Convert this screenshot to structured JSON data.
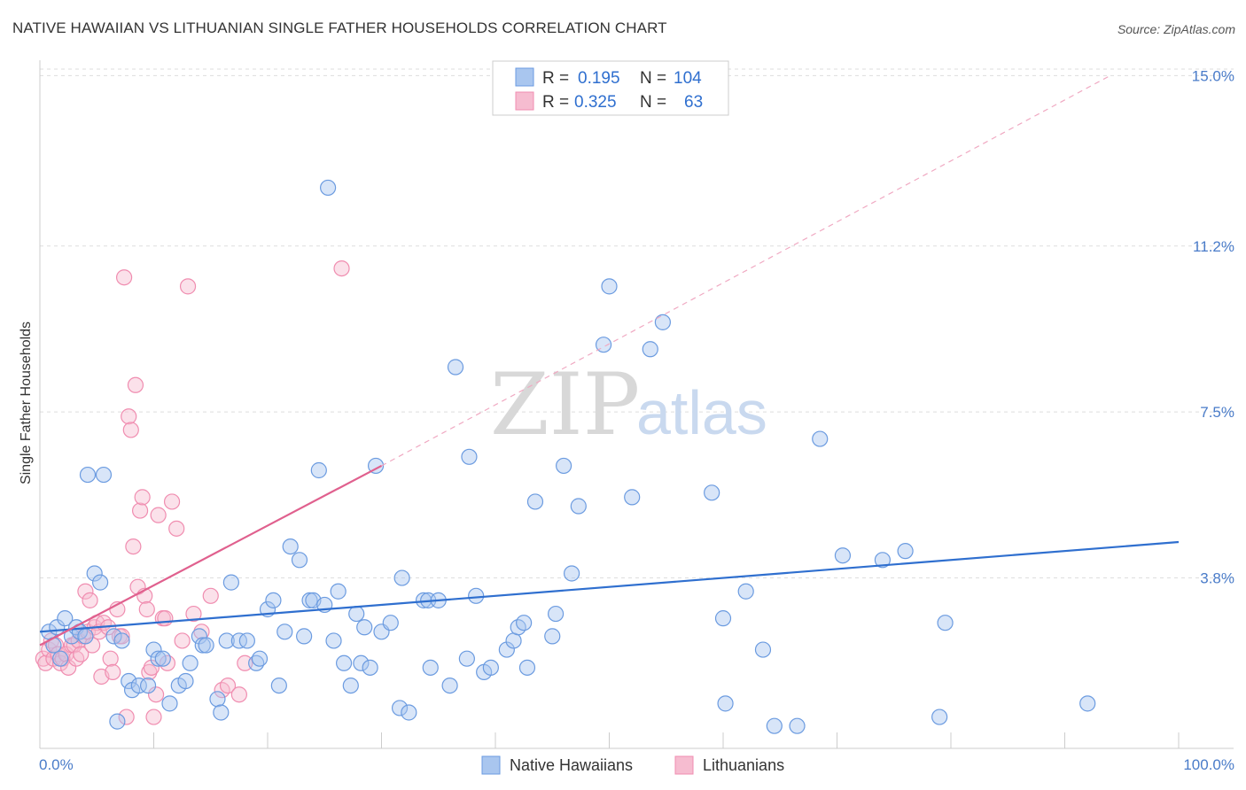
{
  "header": {
    "title": "NATIVE HAWAIIAN VS LITHUANIAN SINGLE FATHER HOUSEHOLDS CORRELATION CHART",
    "source": "Source: ZipAtlas.com"
  },
  "watermark": {
    "zip": "ZIP",
    "atlas": "atlas"
  },
  "legend": {
    "rows": [
      {
        "r_label": "R =",
        "r_value": "0.195",
        "n_label": "N =",
        "n_value": "104",
        "color": "#6b9be0"
      },
      {
        "r_label": "R =",
        "r_value": "0.325",
        "n_label": "N =",
        "n_value": "63",
        "color": "#f08db0"
      }
    ]
  },
  "colors": {
    "blue_fill": "#a9c6ef",
    "blue_stroke": "#6b9be0",
    "blue_line": "#2f6fcf",
    "pink_fill": "#f6bcd0",
    "pink_stroke": "#f08db0",
    "pink_line": "#e0608e",
    "grid": "#dddddd",
    "axis_tick": "#4a7cc9"
  },
  "chart_data": {
    "type": "scatter",
    "title": "NATIVE HAWAIIAN VS LITHUANIAN SINGLE FATHER HOUSEHOLDS CORRELATION CHART",
    "xlabel": "",
    "ylabel": "Single Father Households",
    "xlim": [
      0,
      100
    ],
    "ylim": [
      0,
      15.5
    ],
    "x_tick_labels": [
      "0.0%",
      "100.0%"
    ],
    "y_ticks": [
      3.8,
      7.5,
      11.2,
      15.0
    ],
    "y_tick_labels": [
      "3.8%",
      "7.5%",
      "11.2%",
      "15.0%"
    ],
    "grid": true,
    "series": [
      {
        "name": "Native Hawaiians",
        "color": "#6b9be0",
        "trend": {
          "x": [
            0,
            100
          ],
          "y": [
            2.6,
            4.6
          ],
          "style": "solid"
        },
        "points": [
          [
            0.8,
            2.6
          ],
          [
            1.2,
            2.3
          ],
          [
            1.5,
            2.7
          ],
          [
            1.8,
            2.0
          ],
          [
            2.2,
            2.9
          ],
          [
            2.8,
            2.5
          ],
          [
            3.2,
            2.7
          ],
          [
            3.5,
            2.6
          ],
          [
            4.0,
            2.5
          ],
          [
            4.2,
            6.1
          ],
          [
            4.8,
            3.9
          ],
          [
            5.3,
            3.7
          ],
          [
            5.6,
            6.1
          ],
          [
            6.5,
            2.5
          ],
          [
            6.8,
            0.6
          ],
          [
            7.2,
            2.4
          ],
          [
            7.8,
            1.5
          ],
          [
            8.1,
            1.3
          ],
          [
            8.7,
            1.4
          ],
          [
            9.5,
            1.4
          ],
          [
            10.0,
            2.2
          ],
          [
            10.4,
            2.0
          ],
          [
            10.8,
            2.0
          ],
          [
            11.4,
            1.0
          ],
          [
            12.2,
            1.4
          ],
          [
            12.8,
            1.5
          ],
          [
            13.2,
            1.9
          ],
          [
            14.0,
            2.5
          ],
          [
            14.3,
            2.3
          ],
          [
            14.6,
            2.3
          ],
          [
            15.6,
            1.1
          ],
          [
            15.9,
            0.8
          ],
          [
            16.4,
            2.4
          ],
          [
            16.8,
            3.7
          ],
          [
            17.5,
            2.4
          ],
          [
            18.2,
            2.4
          ],
          [
            19.0,
            1.9
          ],
          [
            19.3,
            2.0
          ],
          [
            20.0,
            3.1
          ],
          [
            20.5,
            3.3
          ],
          [
            21.0,
            1.4
          ],
          [
            21.5,
            2.6
          ],
          [
            22.0,
            4.5
          ],
          [
            22.8,
            4.2
          ],
          [
            23.2,
            2.5
          ],
          [
            23.7,
            3.3
          ],
          [
            24.0,
            3.3
          ],
          [
            24.5,
            6.2
          ],
          [
            25.0,
            3.2
          ],
          [
            25.3,
            12.5
          ],
          [
            25.8,
            2.4
          ],
          [
            26.2,
            3.5
          ],
          [
            26.7,
            1.9
          ],
          [
            27.3,
            1.4
          ],
          [
            27.8,
            3.0
          ],
          [
            28.2,
            1.9
          ],
          [
            28.5,
            2.7
          ],
          [
            29.0,
            1.8
          ],
          [
            29.5,
            6.3
          ],
          [
            30.0,
            2.6
          ],
          [
            30.8,
            2.8
          ],
          [
            31.6,
            0.9
          ],
          [
            31.8,
            3.8
          ],
          [
            32.4,
            0.8
          ],
          [
            33.7,
            3.3
          ],
          [
            34.1,
            3.3
          ],
          [
            34.3,
            1.8
          ],
          [
            35.0,
            3.3
          ],
          [
            36.0,
            1.4
          ],
          [
            36.5,
            8.5
          ],
          [
            37.5,
            2.0
          ],
          [
            37.7,
            6.5
          ],
          [
            38.3,
            3.4
          ],
          [
            39.0,
            1.7
          ],
          [
            39.6,
            1.8
          ],
          [
            41.0,
            2.2
          ],
          [
            41.6,
            2.4
          ],
          [
            42.0,
            2.7
          ],
          [
            42.5,
            2.8
          ],
          [
            42.8,
            1.8
          ],
          [
            43.5,
            5.5
          ],
          [
            45.0,
            2.5
          ],
          [
            45.3,
            3.0
          ],
          [
            46.0,
            6.3
          ],
          [
            46.7,
            3.9
          ],
          [
            47.3,
            5.4
          ],
          [
            49.5,
            9.0
          ],
          [
            50.0,
            10.3
          ],
          [
            52.0,
            5.6
          ],
          [
            53.6,
            8.9
          ],
          [
            54.7,
            9.5
          ],
          [
            59.0,
            5.7
          ],
          [
            60.0,
            2.9
          ],
          [
            60.2,
            1.0
          ],
          [
            62.0,
            3.5
          ],
          [
            63.5,
            2.2
          ],
          [
            64.5,
            0.5
          ],
          [
            66.5,
            0.5
          ],
          [
            68.5,
            6.9
          ],
          [
            70.5,
            4.3
          ],
          [
            74.0,
            4.2
          ],
          [
            76.0,
            4.4
          ],
          [
            79.0,
            0.7
          ],
          [
            79.5,
            2.8
          ],
          [
            92.0,
            1.0
          ]
        ]
      },
      {
        "name": "Lithuanians",
        "color": "#f08db0",
        "trend": {
          "x": [
            0,
            30
          ],
          "y": [
            2.3,
            6.3
          ],
          "style": "solid",
          "extended": {
            "x": [
              30,
              94
            ],
            "y": [
              6.3,
              15.0
            ],
            "style": "dashed"
          }
        },
        "points": [
          [
            0.3,
            2.0
          ],
          [
            0.5,
            1.9
          ],
          [
            0.8,
            2.2
          ],
          [
            1.0,
            2.4
          ],
          [
            1.2,
            2.0
          ],
          [
            1.4,
            2.3
          ],
          [
            1.6,
            2.1
          ],
          [
            1.8,
            1.9
          ],
          [
            2.0,
            2.0
          ],
          [
            2.3,
            2.1
          ],
          [
            2.5,
            1.8
          ],
          [
            2.8,
            2.3
          ],
          [
            3.0,
            2.3
          ],
          [
            3.2,
            2.0
          ],
          [
            3.4,
            2.4
          ],
          [
            3.6,
            2.1
          ],
          [
            3.8,
            2.5
          ],
          [
            4.0,
            3.5
          ],
          [
            4.2,
            2.6
          ],
          [
            4.4,
            3.3
          ],
          [
            4.6,
            2.3
          ],
          [
            4.8,
            2.7
          ],
          [
            5.0,
            2.8
          ],
          [
            5.2,
            2.6
          ],
          [
            5.4,
            1.6
          ],
          [
            5.6,
            2.8
          ],
          [
            6.0,
            2.7
          ],
          [
            6.2,
            2.0
          ],
          [
            6.4,
            1.7
          ],
          [
            6.8,
            3.1
          ],
          [
            7.0,
            2.5
          ],
          [
            7.2,
            2.5
          ],
          [
            7.4,
            10.5
          ],
          [
            7.6,
            0.7
          ],
          [
            7.8,
            7.4
          ],
          [
            8.0,
            7.1
          ],
          [
            8.2,
            4.5
          ],
          [
            8.4,
            8.1
          ],
          [
            8.6,
            3.6
          ],
          [
            8.8,
            5.3
          ],
          [
            9.0,
            5.6
          ],
          [
            9.2,
            3.4
          ],
          [
            9.4,
            3.1
          ],
          [
            9.6,
            1.7
          ],
          [
            9.8,
            1.8
          ],
          [
            10.0,
            0.7
          ],
          [
            10.2,
            1.2
          ],
          [
            10.4,
            5.2
          ],
          [
            10.8,
            2.9
          ],
          [
            11.0,
            2.9
          ],
          [
            11.2,
            1.9
          ],
          [
            11.6,
            5.5
          ],
          [
            12.0,
            4.9
          ],
          [
            12.5,
            2.4
          ],
          [
            13.0,
            10.3
          ],
          [
            13.5,
            3.0
          ],
          [
            14.2,
            2.6
          ],
          [
            15.0,
            3.4
          ],
          [
            16.0,
            1.3
          ],
          [
            16.5,
            1.4
          ],
          [
            17.5,
            1.2
          ],
          [
            18.0,
            1.9
          ],
          [
            26.5,
            10.7
          ]
        ]
      }
    ]
  },
  "bottom_legend": [
    {
      "label": "Native Hawaiians",
      "color": "#a9c6ef"
    },
    {
      "label": "Lithuanians",
      "color": "#f6bcd0"
    }
  ]
}
